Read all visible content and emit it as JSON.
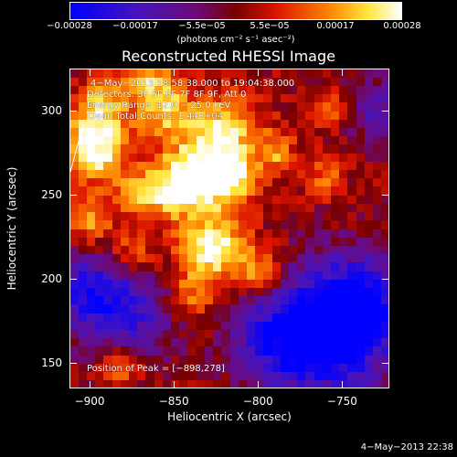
{
  "colorbar": {
    "ticks": [
      "−0.00028",
      "−0.00017",
      "−5.5e−05",
      "5.5e−05",
      "0.00017",
      "0.00028"
    ],
    "units": "(photons cm⁻² s⁻¹ asec⁻²)"
  },
  "plot": {
    "title": "Reconstructed RHESSI Image",
    "info_lines": [
      "4−May−2013 18:58:38.000 to 19:04:38.000",
      "Detectors: 3F 5F 6F 7F 8F 9F, Att 0",
      "Energy Range: 12.0 − 25.0 keV",
      "Clean     Total Counts: 1.44E+04"
    ],
    "peak_text": "Position of Peak = [−898,278]"
  },
  "footer": {
    "date": "4−May−2013 22:38"
  },
  "colors": {
    "background": "#000000",
    "text": "#ffffff"
  },
  "chart_data": {
    "type": "heatmap",
    "title": "Reconstructed RHESSI Image",
    "xlabel": "Heliocentric X (arcsec)",
    "ylabel": "Heliocentric Y (arcsec)",
    "xlim": [
      -912,
      -722
    ],
    "ylim": [
      135,
      325
    ],
    "x_ticks": [
      -900,
      -850,
      -800,
      -750
    ],
    "y_ticks": [
      150,
      200,
      250,
      300
    ],
    "x_tick_labels": [
      "−900",
      "−850",
      "−800",
      "−750"
    ],
    "y_tick_labels": [
      "150",
      "200",
      "250",
      "300"
    ],
    "colorbar_range": [
      -0.00028,
      0.00028
    ],
    "colorbar_ticks": [
      -0.00028,
      -0.00017,
      -5.5e-05,
      5.5e-05,
      0.00017,
      0.00028
    ],
    "peak_position": [
      -898,
      278
    ],
    "colormap": "blue-purple-red-yellow-white",
    "grid": {
      "x_start": -912,
      "y_start": 325,
      "cell": 5,
      "z": [
        [
          0,
          0,
          0,
          0,
          0,
          0,
          0,
          0,
          0,
          0,
          0,
          0,
          0,
          0,
          0,
          0,
          0,
          0,
          0,
          0,
          0,
          0,
          0,
          0,
          0,
          0,
          0,
          0,
          0,
          0,
          0,
          0,
          0,
          0,
          0,
          0,
          0,
          0
        ],
        [
          0.4,
          0.6,
          0.8,
          0.6,
          0.4,
          0.3,
          0.2,
          0.3,
          0.4,
          0.3,
          0.2,
          0.1,
          0.2,
          0.3,
          0.4,
          0.3,
          0.2,
          0.1,
          0.0,
          -0.1,
          -0.2,
          -0.1,
          0.0,
          0.1,
          0.0,
          -0.1,
          -0.2,
          -0.1,
          0.0,
          0.1,
          0.2,
          0.1,
          0.0,
          -0.1,
          0.0,
          0.1,
          0.2,
          0.1
        ],
        [
          0.5,
          0.7,
          0.9,
          0.7,
          0.5,
          0.4,
          0.3,
          0.4,
          0.6,
          0.4,
          0.3,
          0.2,
          0.3,
          0.5,
          0.7,
          0.5,
          0.3,
          0.2,
          0.1,
          -0.1,
          -0.3,
          -0.2,
          0.0,
          0.2,
          0.1,
          -0.1,
          -0.3,
          -0.2,
          0.0,
          0.2,
          0.3,
          0.2,
          0.0,
          -0.1,
          0.1,
          0.2,
          0.3,
          0.1
        ]
      ]
    }
  }
}
